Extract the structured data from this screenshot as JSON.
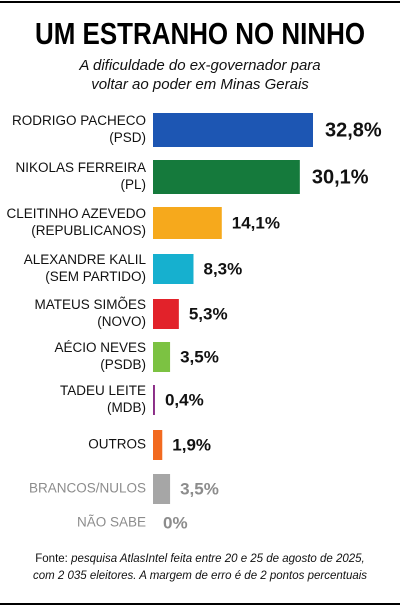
{
  "chart_data": {
    "type": "bar",
    "orientation": "horizontal",
    "title": "UM ESTRANHO NO NINHO",
    "subtitle": [
      "A dificuldade do ex-governador para",
      "voltar ao poder em Minas Gerais"
    ],
    "categories": [
      [
        "RODRIGO PACHECO",
        "(PSD)"
      ],
      [
        "NIKOLAS FERREIRA",
        "(PL)"
      ],
      [
        "CLEITINHO AZEVEDO",
        "(REPUBLICANOS)"
      ],
      [
        "ALEXANDRE KALIL",
        "(SEM PARTIDO)"
      ],
      [
        "MATEUS SIMÕES",
        "(NOVO)"
      ],
      [
        "AÉCIO NEVES",
        "(PSDB)"
      ],
      [
        "TADEU LEITE",
        "(MDB)"
      ],
      [
        "OUTROS"
      ],
      [
        "BRANCOS/NULOS"
      ],
      [
        "NÃO SABE"
      ]
    ],
    "values": [
      32.8,
      30.1,
      14.1,
      8.3,
      5.3,
      3.5,
      0.4,
      1.9,
      3.5,
      0
    ],
    "value_labels": [
      "32,8%",
      "30,1%",
      "14,1%",
      "8,3%",
      "5,3%",
      "3,5%",
      "0,4%",
      "1,9%",
      "3,5%",
      "0%"
    ],
    "colors": [
      "#1d56b3",
      "#157a3c",
      "#f6a91c",
      "#16b0cf",
      "#e2222a",
      "#7cc242",
      "#8a2d87",
      "#f26a1f",
      "#a6a6a6",
      "#a6a6a6"
    ],
    "label_colors": [
      "#111111",
      "#111111",
      "#111111",
      "#111111",
      "#111111",
      "#111111",
      "#111111",
      "#111111",
      "#8c8c8c",
      "#8c8c8c"
    ],
    "source_label": "Fonte:",
    "source": [
      "pesquisa AtlasIntel feita entre 20 e 25 de agosto de 2025,",
      "com 2 035 eleitores. A margem de erro é de 2 pontos percentuais"
    ]
  }
}
